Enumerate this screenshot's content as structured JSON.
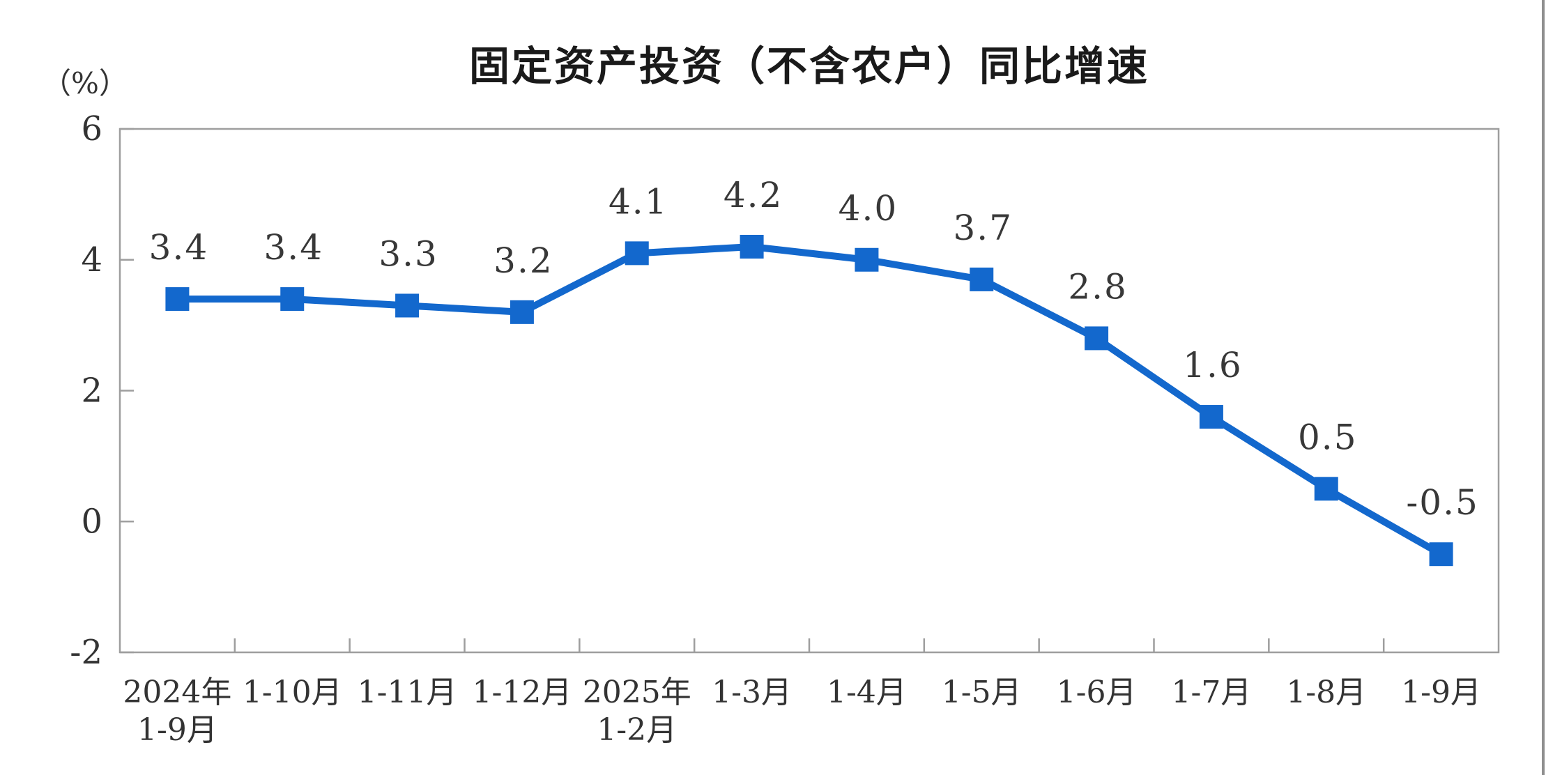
{
  "page": {
    "background": "#ffffff"
  },
  "chart_data": {
    "type": "line",
    "title": "固定资产投资（不含农户）同比增速",
    "unit_label": "（%）",
    "categories": [
      [
        "2024年",
        "1-9月"
      ],
      [
        "1-10月"
      ],
      [
        "1-11月"
      ],
      [
        "1-12月"
      ],
      [
        "2025年",
        "1-2月"
      ],
      [
        "1-3月"
      ],
      [
        "1-4月"
      ],
      [
        "1-5月"
      ],
      [
        "1-6月"
      ],
      [
        "1-7月"
      ],
      [
        "1-8月"
      ],
      [
        "1-9月"
      ]
    ],
    "series": [
      {
        "values": [
          3.4,
          3.4,
          3.3,
          3.2,
          4.1,
          4.2,
          4.0,
          3.7,
          2.8,
          1.6,
          0.5,
          -0.5
        ],
        "labels": [
          "3.4",
          "3.4",
          "3.3",
          "3.2",
          "4.1",
          "4.2",
          "4.0",
          "3.7",
          "2.8",
          "1.6",
          "0.5",
          "-0.5"
        ]
      }
    ],
    "ylim": [
      -2,
      6
    ],
    "yticks": [
      6,
      4,
      2,
      0,
      -2
    ],
    "grid": false,
    "legend_position": "none",
    "marker": "square",
    "colors": {
      "line": "#1368cd",
      "marker": "#1368cd",
      "label_text": "#383838",
      "tick_text": "#333333",
      "axis": "#9e9e9e",
      "title_text": "#1a1a1a",
      "screenshot_right_border": "#8f8f8f"
    }
  }
}
